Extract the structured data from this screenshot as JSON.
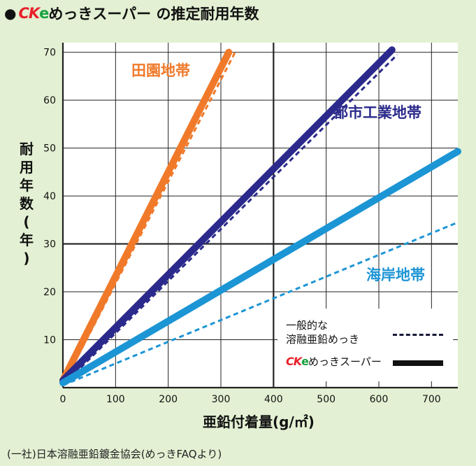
{
  "title": {
    "bullet": "●",
    "brand_ck": "CK",
    "brand_e": "e",
    "text": "めっきスーパー の推定耐用年数"
  },
  "chart_data": {
    "type": "line",
    "title": "●CKeめっきスーパー の推定耐用年数",
    "xlabel": "亜鉛付着量(g/㎡)",
    "ylabel": "耐用年数(年)",
    "xlim": [
      0,
      750
    ],
    "ylim": [
      0,
      72
    ],
    "xticks": [
      0,
      100,
      200,
      300,
      400,
      500,
      600,
      700
    ],
    "yticks": [
      0,
      10,
      20,
      30,
      40,
      50,
      60,
      70
    ],
    "grid": true,
    "legend_position": "bottom-right",
    "series": [
      {
        "name": "田園地帯",
        "style": "solid",
        "color": "#f07a2a",
        "x": [
          0,
          315
        ],
        "y": [
          1.5,
          70
        ]
      },
      {
        "name": "田園地帯",
        "style": "dashed",
        "color": "#f07a2a",
        "x": [
          0,
          327
        ],
        "y": [
          0.5,
          70
        ]
      },
      {
        "name": "都市工業地帯",
        "style": "solid",
        "color": "#2b2a8c",
        "x": [
          0,
          625
        ],
        "y": [
          1.5,
          70.5
        ]
      },
      {
        "name": "都市工業地帯",
        "style": "dashed",
        "color": "#2b2a8c",
        "x": [
          0,
          635
        ],
        "y": [
          0.5,
          69.5
        ]
      },
      {
        "name": "海岸地帯",
        "style": "solid",
        "color": "#1c95d5",
        "x": [
          0,
          750
        ],
        "y": [
          1.0,
          49.3
        ]
      },
      {
        "name": "海岸地帯",
        "style": "dashed",
        "color": "#1c95d5",
        "x": [
          0,
          750
        ],
        "y": [
          0.5,
          34.5
        ]
      }
    ],
    "annotations": [
      {
        "text": "田園地帯",
        "color": "#f07a2a"
      },
      {
        "text": "都市工業地帯",
        "color": "#2b2a8c"
      },
      {
        "text": "海岸地帯",
        "color": "#1c95d5"
      }
    ],
    "legend": {
      "dashed_label": "一般的な\n溶融亜鉛めっき",
      "solid_brand_ck": "CK",
      "solid_brand_e": "e",
      "solid_label_rest": "めっきスーパー"
    }
  },
  "source": "(一社)日本溶融亜鉛鍍金協会(めっきFAQより)"
}
